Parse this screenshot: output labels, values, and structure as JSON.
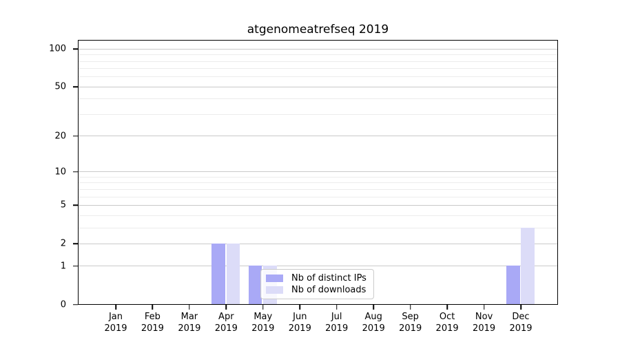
{
  "chart_data": {
    "type": "bar",
    "title": "atgenomeatrefseq 2019",
    "categories": [
      "Jan",
      "Feb",
      "Mar",
      "Apr",
      "May",
      "Jun",
      "Jul",
      "Aug",
      "Sep",
      "Oct",
      "Nov",
      "Dec"
    ],
    "year_label": "2019",
    "series": [
      {
        "name": "Nb of distinct IPs",
        "color": "#a9a9f6",
        "values": [
          0,
          0,
          0,
          2,
          1,
          0,
          0,
          0,
          0,
          0,
          0,
          1
        ]
      },
      {
        "name": "Nb of downloads",
        "color": "#dcdcf8",
        "values": [
          0,
          0,
          0,
          2,
          1,
          0,
          0,
          0,
          0,
          0,
          0,
          3
        ]
      }
    ],
    "xlabel": "",
    "ylabel": "",
    "yscale": "log1p",
    "ylim": [
      0,
      116
    ],
    "xlim": [
      -1,
      12
    ],
    "yticks": [
      0,
      1,
      2,
      5,
      10,
      20,
      50,
      100
    ],
    "minor_yticks": [
      3,
      4,
      6,
      7,
      8,
      9,
      30,
      40,
      60,
      70,
      80,
      90
    ],
    "bar_width": 0.37,
    "bar_offsets": [
      -0.2,
      0.2
    ],
    "grid": true,
    "legend_position": "lower center"
  },
  "colors": {
    "series_distinct_ips": "#a9a9f6",
    "series_downloads": "#dcdcf8",
    "major_grid": "#c9c9c9",
    "minor_grid": "#ececec",
    "spine": "#000000",
    "background": "#ffffff"
  }
}
